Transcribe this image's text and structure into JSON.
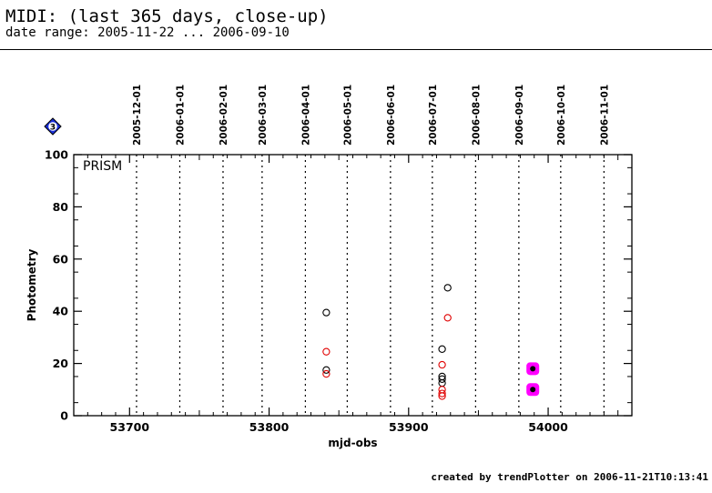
{
  "header": {
    "title": "MIDI: (last 365 days, close-up)",
    "subtitle": "date range: 2005-11-22 ... 2006-09-10"
  },
  "footer": {
    "text": "created by trendPlotter on 2006-11-21T10:13:41"
  },
  "badge": {
    "text": "3",
    "color": "#1a2fd6"
  },
  "chart_data": {
    "type": "scatter",
    "panel_label": "PRISM",
    "xlabel": "mjd-obs",
    "ylabel": "Photometry",
    "xlim": [
      53660,
      54060
    ],
    "ylim": [
      0,
      100
    ],
    "xticks": [
      53700,
      53800,
      53900,
      54000
    ],
    "yticks": [
      0,
      20,
      40,
      60,
      80,
      100
    ],
    "date_lines": [
      {
        "label": "2005-12-01",
        "mjd": 53705
      },
      {
        "label": "2006-01-01",
        "mjd": 53736
      },
      {
        "label": "2006-02-01",
        "mjd": 53767
      },
      {
        "label": "2006-03-01",
        "mjd": 53795
      },
      {
        "label": "2006-04-01",
        "mjd": 53826
      },
      {
        "label": "2006-05-01",
        "mjd": 53856
      },
      {
        "label": "2006-06-01",
        "mjd": 53887
      },
      {
        "label": "2006-07-01",
        "mjd": 53917
      },
      {
        "label": "2006-08-01",
        "mjd": 53948
      },
      {
        "label": "2006-09-01",
        "mjd": 53979
      },
      {
        "label": "2006-10-01",
        "mjd": 54009
      },
      {
        "label": "2006-11-01",
        "mjd": 54040
      }
    ],
    "series": [
      {
        "color": "#000000",
        "style": "open-circle",
        "points": [
          [
            53841,
            39.5
          ],
          [
            53841,
            17.5
          ],
          [
            53928,
            49
          ],
          [
            53924,
            25.5
          ],
          [
            53924,
            15
          ],
          [
            53924,
            14
          ],
          [
            53924,
            12.5
          ]
        ]
      },
      {
        "color": "#e00000",
        "style": "open-circle",
        "points": [
          [
            53841,
            24.5
          ],
          [
            53841,
            16
          ],
          [
            53928,
            37.5
          ],
          [
            53924,
            19.5
          ],
          [
            53924,
            10
          ],
          [
            53924,
            8.5
          ],
          [
            53924,
            7.5
          ]
        ]
      },
      {
        "color": "#ff00ff",
        "style": "filled-square-with-dot",
        "points": [
          [
            53989,
            18
          ],
          [
            53989,
            10
          ]
        ]
      }
    ],
    "grid": false
  }
}
